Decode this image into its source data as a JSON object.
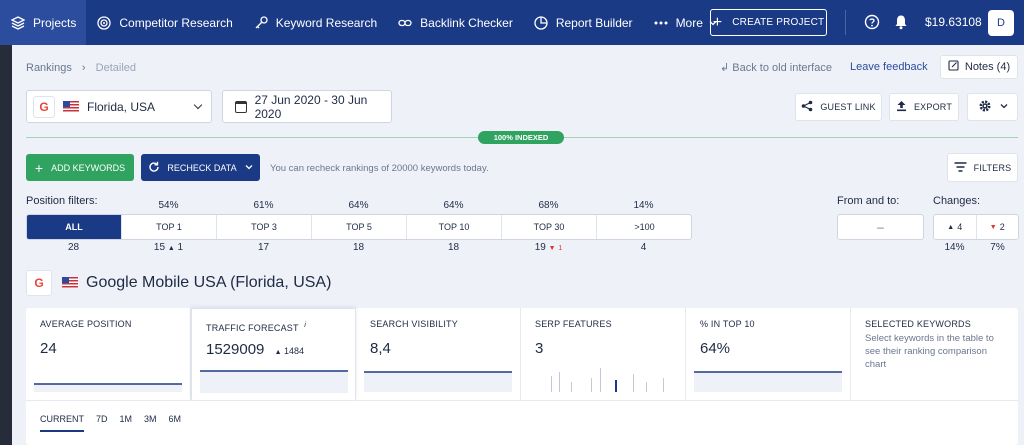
{
  "nav": {
    "items": [
      {
        "label": "Projects",
        "icon": "layers-icon",
        "active": true
      },
      {
        "label": "Competitor Research",
        "icon": "target-icon"
      },
      {
        "label": "Keyword Research",
        "icon": "key-icon"
      },
      {
        "label": "Backlink Checker",
        "icon": "link-icon"
      },
      {
        "label": "Report Builder",
        "icon": "pie-chart-icon"
      },
      {
        "label": "More",
        "icon": "dots-icon"
      }
    ],
    "create_label": "CREATE PROJECT",
    "balance": "$19.63108",
    "avatar": "D"
  },
  "breadcrumb": {
    "root": "Rankings",
    "current": "Detailed"
  },
  "header_links": {
    "back": "Back to old interface",
    "feedback": "Leave feedback",
    "notes": "Notes (4)"
  },
  "location": {
    "value": "Florida, USA"
  },
  "date_range": {
    "value": "27 Jun 2020 - 30 Jun 2020"
  },
  "actions": {
    "guest_link": "GUEST LINK",
    "export": "EXPORT"
  },
  "indexed": "100% INDEXED",
  "toolbar": {
    "add_keywords": "ADD KEYWORDS",
    "recheck": "RECHECK DATA",
    "recheck_note": "You can recheck rankings of 20000 keywords today.",
    "filters": "FILTERS"
  },
  "position_filters": {
    "label": "Position filters:",
    "segments": [
      {
        "label": "ALL",
        "pct": "",
        "count": "28",
        "delta": ""
      },
      {
        "label": "TOP 1",
        "pct": "54%",
        "count": "15",
        "delta": "1",
        "dir": "up"
      },
      {
        "label": "TOP 3",
        "pct": "61%",
        "count": "17",
        "delta": ""
      },
      {
        "label": "TOP 5",
        "pct": "64%",
        "count": "18",
        "delta": ""
      },
      {
        "label": "TOP 10",
        "pct": "64%",
        "count": "18",
        "delta": ""
      },
      {
        "label": "TOP 30",
        "pct": "68%",
        "count": "19",
        "delta": "1",
        "dir": "down"
      },
      {
        "label": ">100",
        "pct": "14%",
        "count": "4",
        "delta": ""
      }
    ]
  },
  "from_to": {
    "label": "From and to:",
    "value": "–"
  },
  "changes": {
    "label": "Changes:",
    "up": "4",
    "down": "2",
    "up_pct": "14%",
    "down_pct": "7%"
  },
  "engine": {
    "badge": "G",
    "title": "Google Mobile USA (Florida, USA)"
  },
  "metrics": [
    {
      "label": "AVERAGE POSITION",
      "value": "24",
      "delta": ""
    },
    {
      "label": "TRAFFIC FORECAST",
      "value": "1529009",
      "delta": "1484",
      "info": "i"
    },
    {
      "label": "SEARCH VISIBILITY",
      "value": "8,4",
      "delta": ""
    },
    {
      "label": "SERP FEATURES",
      "value": "3",
      "delta": ""
    },
    {
      "label": "% IN TOP 10",
      "value": "64%",
      "delta": ""
    },
    {
      "label": "SELECTED KEYWORDS",
      "value": "",
      "note": "Select keywords in the table to see their ranking comparison chart"
    }
  ],
  "periods": [
    "CURRENT",
    "7D",
    "1M",
    "3M",
    "6M"
  ],
  "colors": {
    "nav_bg": "#1b3a86",
    "accent_green": "#2fa35f",
    "down_red": "#d93535"
  }
}
